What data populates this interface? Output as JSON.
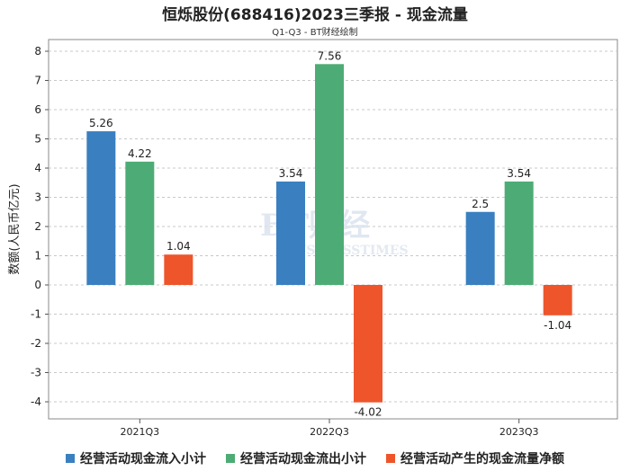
{
  "chart_data": {
    "type": "bar",
    "title": "恒烁股份(688416)2023三季报 - 现金流量",
    "subtitle": "Q1-Q3 - BT财经绘制",
    "ylabel": "数额(人民币亿元)",
    "xlabel": "",
    "categories": [
      "2021Q3",
      "2022Q3",
      "2023Q3"
    ],
    "ylim": [
      -5,
      8
    ],
    "yticks": [
      8,
      7,
      6,
      5,
      4,
      3,
      2,
      1,
      0,
      -1,
      -2,
      -3,
      -4
    ],
    "ytick_labels": [
      "8",
      "7",
      "6",
      "5",
      "4",
      "3",
      "2",
      "1",
      "0",
      "-1",
      "-2",
      "-3",
      "-4"
    ],
    "series": [
      {
        "name": "经营活动现金流入小计",
        "color": "#3a80c0",
        "values": [
          5.26,
          3.54,
          2.5
        ],
        "labels": [
          "5.26",
          "3.54",
          "2.5"
        ]
      },
      {
        "name": "经营活动现金流出小计",
        "color": "#4dac75",
        "values": [
          4.22,
          7.56,
          3.54
        ],
        "labels": [
          "4.22",
          "7.56",
          "3.54"
        ]
      },
      {
        "name": "经营活动产生的现金流量净额",
        "color": "#ee552b",
        "values": [
          1.04,
          -4.02,
          -1.04
        ],
        "labels": [
          "1.04",
          "-4.02",
          "-1.04"
        ]
      }
    ],
    "watermark": {
      "main": "BT财经",
      "sub": "BUSINESSTIMES"
    },
    "grid": true,
    "legend_position": "bottom"
  }
}
